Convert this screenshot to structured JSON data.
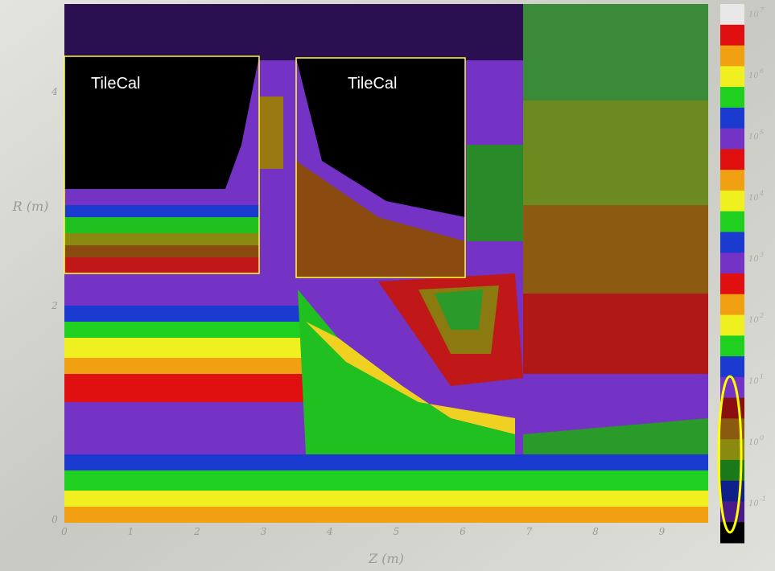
{
  "plot": {
    "x_axis_label": "Z (m)",
    "y_axis_label": "R (m)",
    "x_ticks": [
      "0",
      "1",
      "2",
      "3",
      "4",
      "5",
      "6",
      "7",
      "8",
      "9"
    ],
    "y_ticks": [
      "0",
      "2",
      "4"
    ],
    "annotations": [
      "TileCal",
      "TileCal"
    ],
    "colorbar_labels": [
      {
        "base": "10",
        "exponent": "7"
      },
      {
        "base": "10",
        "exponent": "6"
      },
      {
        "base": "10",
        "exponent": "5"
      },
      {
        "base": "10",
        "exponent": "4"
      },
      {
        "base": "10",
        "exponent": "3"
      },
      {
        "base": "10",
        "exponent": "2"
      },
      {
        "base": "10",
        "exponent": "1"
      },
      {
        "base": "10",
        "exponent": "0"
      },
      {
        "base": "10",
        "exponent": "-1"
      }
    ]
  }
}
